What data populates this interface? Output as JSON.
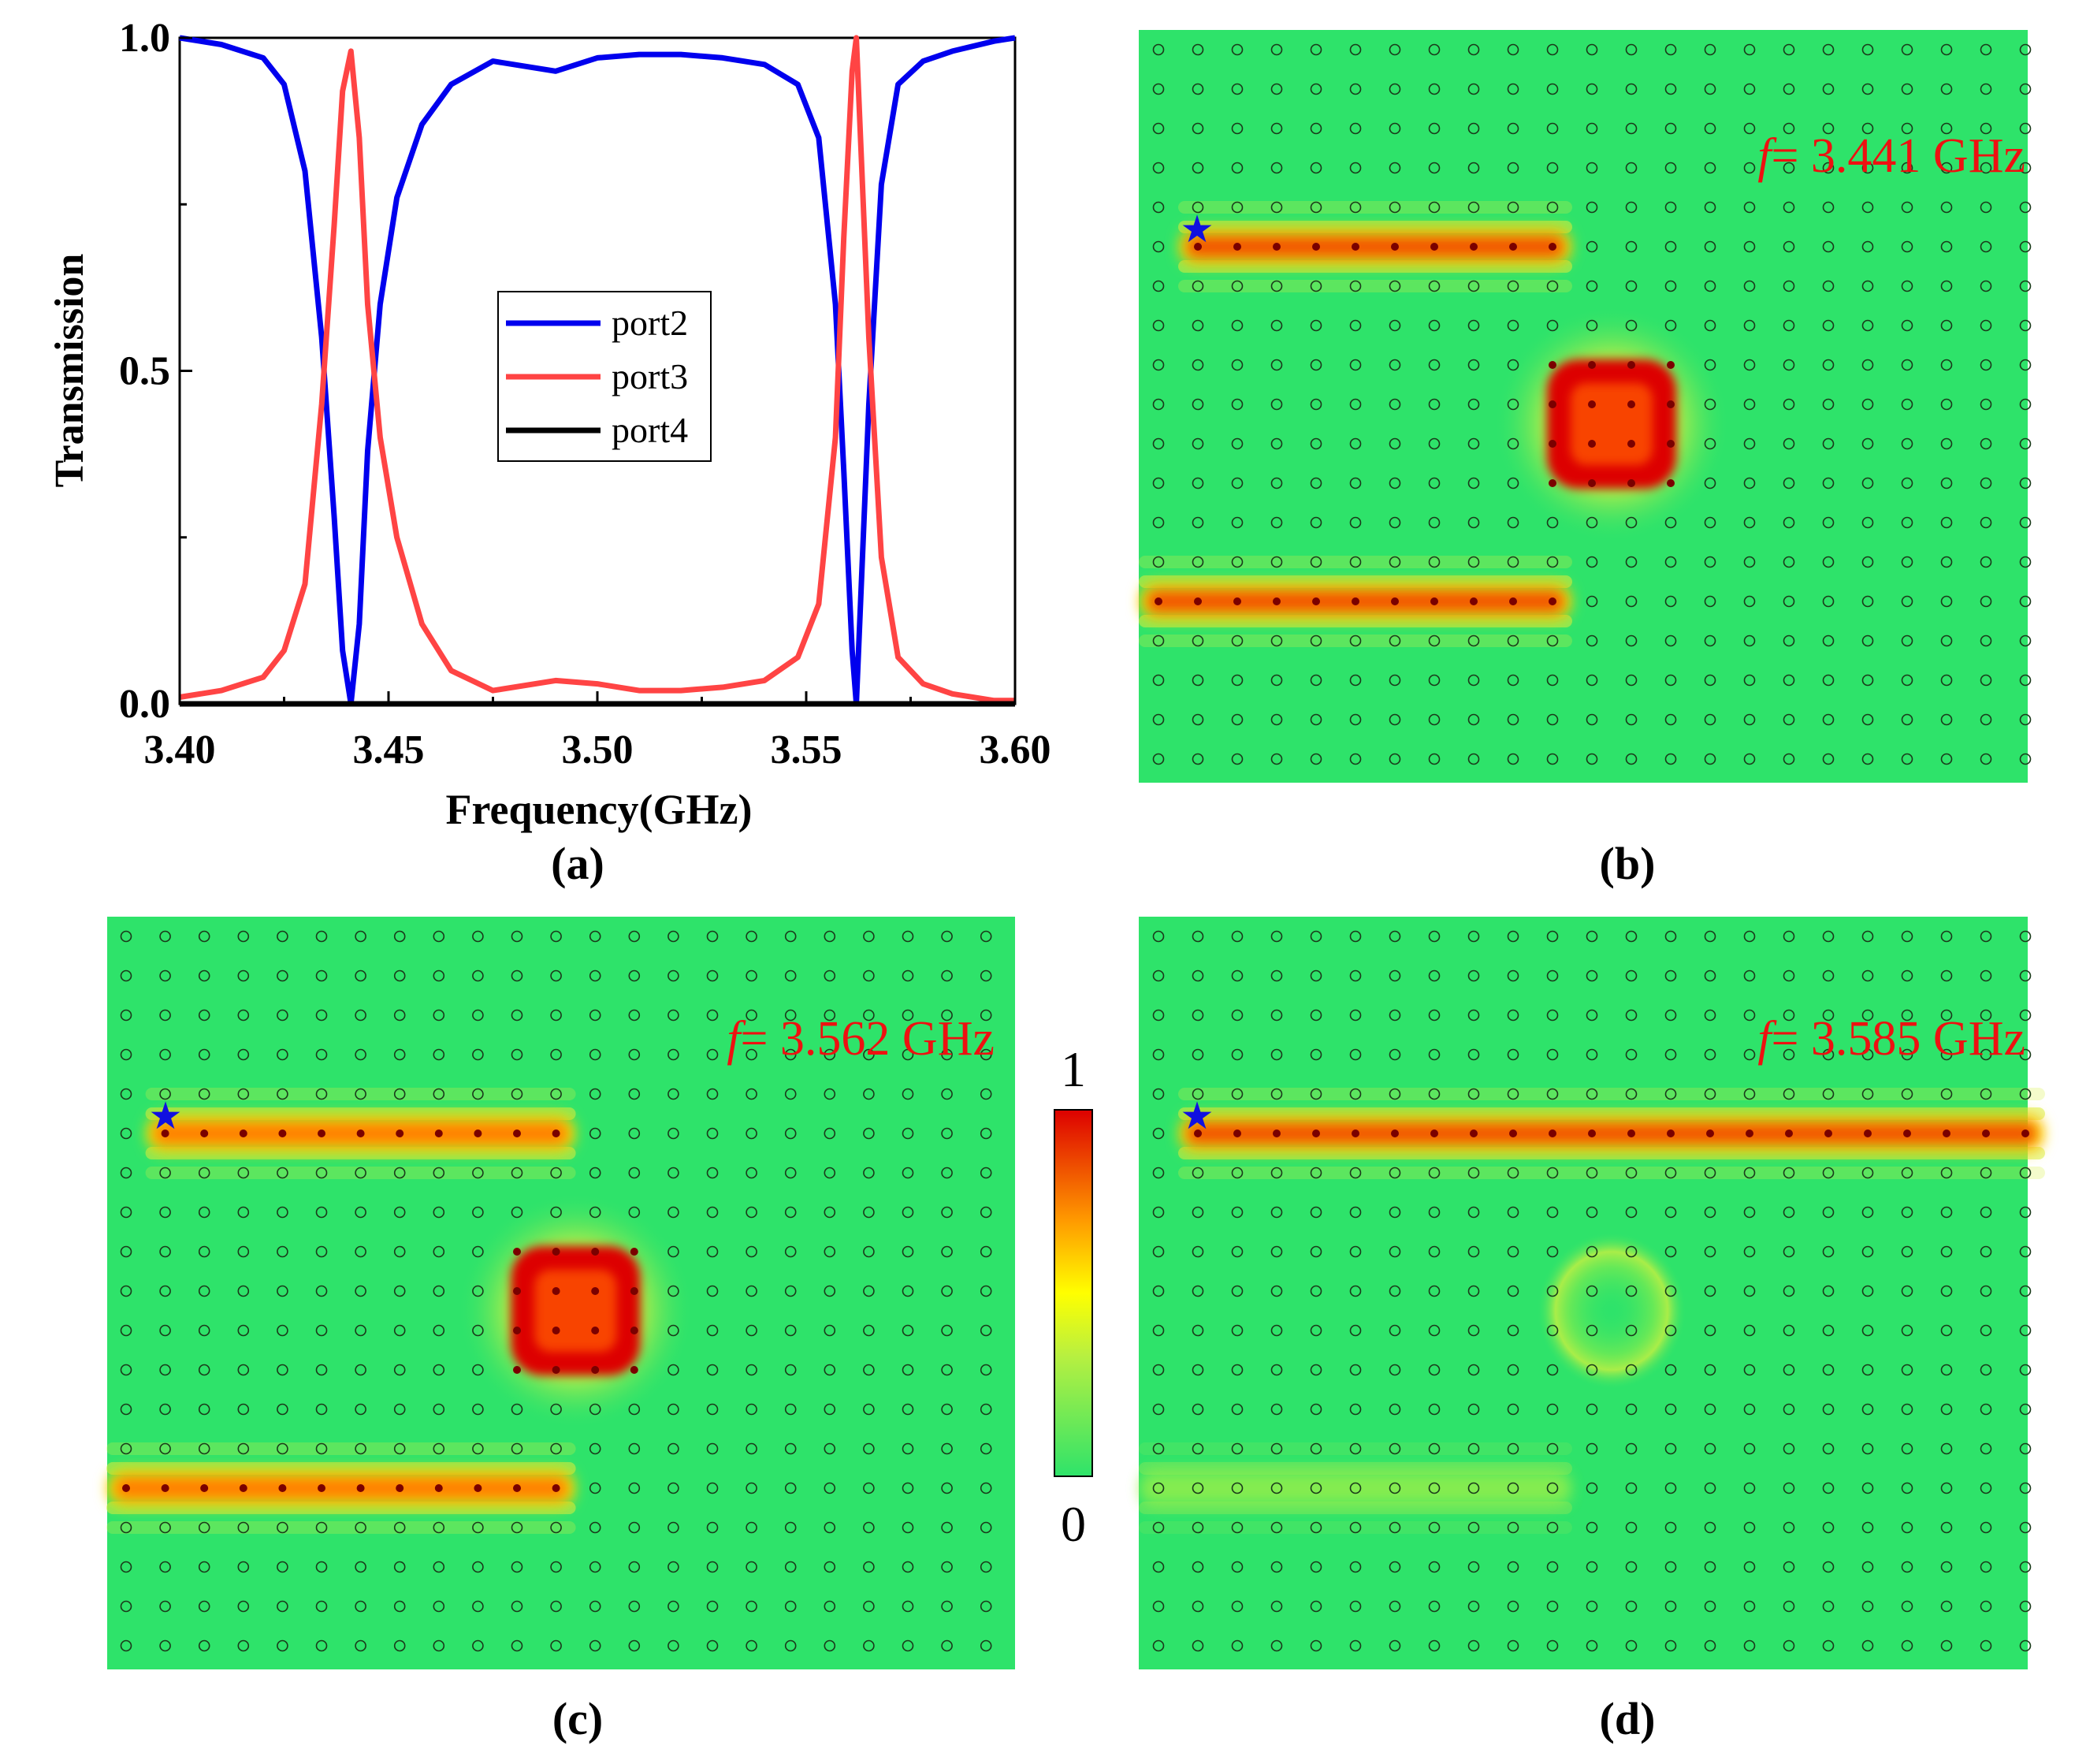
{
  "chart_data": [
    {
      "panel": "(a)",
      "type": "line",
      "title": "",
      "xlabel": "Frequency(GHz)",
      "ylabel": "Transmission",
      "xlim": [
        3.4,
        3.6
      ],
      "ylim": [
        0.0,
        1.0
      ],
      "xticks": [
        "3.40",
        "3.45",
        "3.50",
        "3.55",
        "3.60"
      ],
      "yticks": [
        "0.0",
        "0.5",
        "1.0"
      ],
      "legend": {
        "placement": "center",
        "entries": [
          "port2",
          "port3",
          "port4"
        ]
      },
      "series": [
        {
          "name": "port2",
          "color": "#0000ee",
          "x": [
            3.4,
            3.41,
            3.42,
            3.425,
            3.43,
            3.434,
            3.437,
            3.439,
            3.441,
            3.443,
            3.445,
            3.448,
            3.452,
            3.458,
            3.465,
            3.475,
            3.49,
            3.5,
            3.51,
            3.52,
            3.53,
            3.54,
            3.548,
            3.553,
            3.557,
            3.559,
            3.561,
            3.562,
            3.563,
            3.565,
            3.568,
            3.572,
            3.578,
            3.585,
            3.595,
            3.6
          ],
          "y": [
            1.0,
            0.99,
            0.97,
            0.93,
            0.8,
            0.55,
            0.28,
            0.08,
            0.0,
            0.12,
            0.38,
            0.6,
            0.76,
            0.87,
            0.93,
            0.965,
            0.95,
            0.97,
            0.975,
            0.975,
            0.97,
            0.96,
            0.93,
            0.85,
            0.6,
            0.35,
            0.08,
            0.0,
            0.15,
            0.45,
            0.78,
            0.93,
            0.965,
            0.98,
            0.995,
            1.0
          ]
        },
        {
          "name": "port3",
          "color": "#ff4444",
          "x": [
            3.4,
            3.41,
            3.42,
            3.425,
            3.43,
            3.434,
            3.437,
            3.439,
            3.441,
            3.443,
            3.445,
            3.448,
            3.452,
            3.458,
            3.465,
            3.475,
            3.49,
            3.5,
            3.51,
            3.52,
            3.53,
            3.54,
            3.548,
            3.553,
            3.557,
            3.559,
            3.561,
            3.562,
            3.563,
            3.565,
            3.568,
            3.572,
            3.578,
            3.585,
            3.595,
            3.6
          ],
          "y": [
            0.01,
            0.02,
            0.04,
            0.08,
            0.18,
            0.45,
            0.72,
            0.92,
            0.98,
            0.85,
            0.6,
            0.4,
            0.25,
            0.12,
            0.05,
            0.02,
            0.035,
            0.03,
            0.02,
            0.02,
            0.025,
            0.035,
            0.07,
            0.15,
            0.4,
            0.7,
            0.95,
            1.0,
            0.85,
            0.55,
            0.22,
            0.07,
            0.03,
            0.015,
            0.005,
            0.005
          ]
        },
        {
          "name": "port4",
          "color": "#000000",
          "x": [
            3.4,
            3.6
          ],
          "y": [
            0.0,
            0.0
          ]
        }
      ]
    },
    {
      "panel": "(b)",
      "type": "heatmap",
      "annotation_f": "f",
      "annotation_value": "= 3.441 GHz",
      "grid": {
        "cols": 23,
        "rows": 19
      },
      "source_row": 5,
      "guides": [
        {
          "row": 5,
          "col_start": 1,
          "col_end": 10,
          "intensity": 1.0
        },
        {
          "row": 14,
          "col_start": 0,
          "col_end": 10,
          "intensity": 1.0
        }
      ],
      "cavity": {
        "row_center": 9.5,
        "col_center": 11.5,
        "intensity": 1.0
      }
    },
    {
      "panel": "(c)",
      "type": "heatmap",
      "annotation_f": "f",
      "annotation_value": "= 3.562 GHz",
      "grid": {
        "cols": 23,
        "rows": 19
      },
      "source_row": 5,
      "guides": [
        {
          "row": 5,
          "col_start": 1,
          "col_end": 11,
          "intensity": 0.95
        },
        {
          "row": 14,
          "col_start": 0,
          "col_end": 11,
          "intensity": 0.95
        }
      ],
      "cavity": {
        "row_center": 9.5,
        "col_center": 11.5,
        "intensity": 1.0
      }
    },
    {
      "panel": "(d)",
      "type": "heatmap",
      "annotation_f": "f",
      "annotation_value": "= 3.585 GHz",
      "grid": {
        "cols": 23,
        "rows": 19
      },
      "source_row": 5,
      "guides": [
        {
          "row": 5,
          "col_start": 1,
          "col_end": 22,
          "intensity": 1.0
        },
        {
          "row": 14,
          "col_start": 0,
          "col_end": 10,
          "intensity": 0.15
        }
      ],
      "cavity": {
        "row_center": 9.5,
        "col_center": 11.5,
        "intensity": 0.3
      }
    }
  ],
  "colorbar": {
    "max_label": "1",
    "min_label": "0"
  },
  "panel_labels": {
    "a": "(a)",
    "b": "(b)",
    "c": "(c)",
    "d": "(d)"
  },
  "colors": {
    "field_bg": "#2ee36a",
    "source_star": "#1010e0",
    "annotation": "#ee1111"
  }
}
